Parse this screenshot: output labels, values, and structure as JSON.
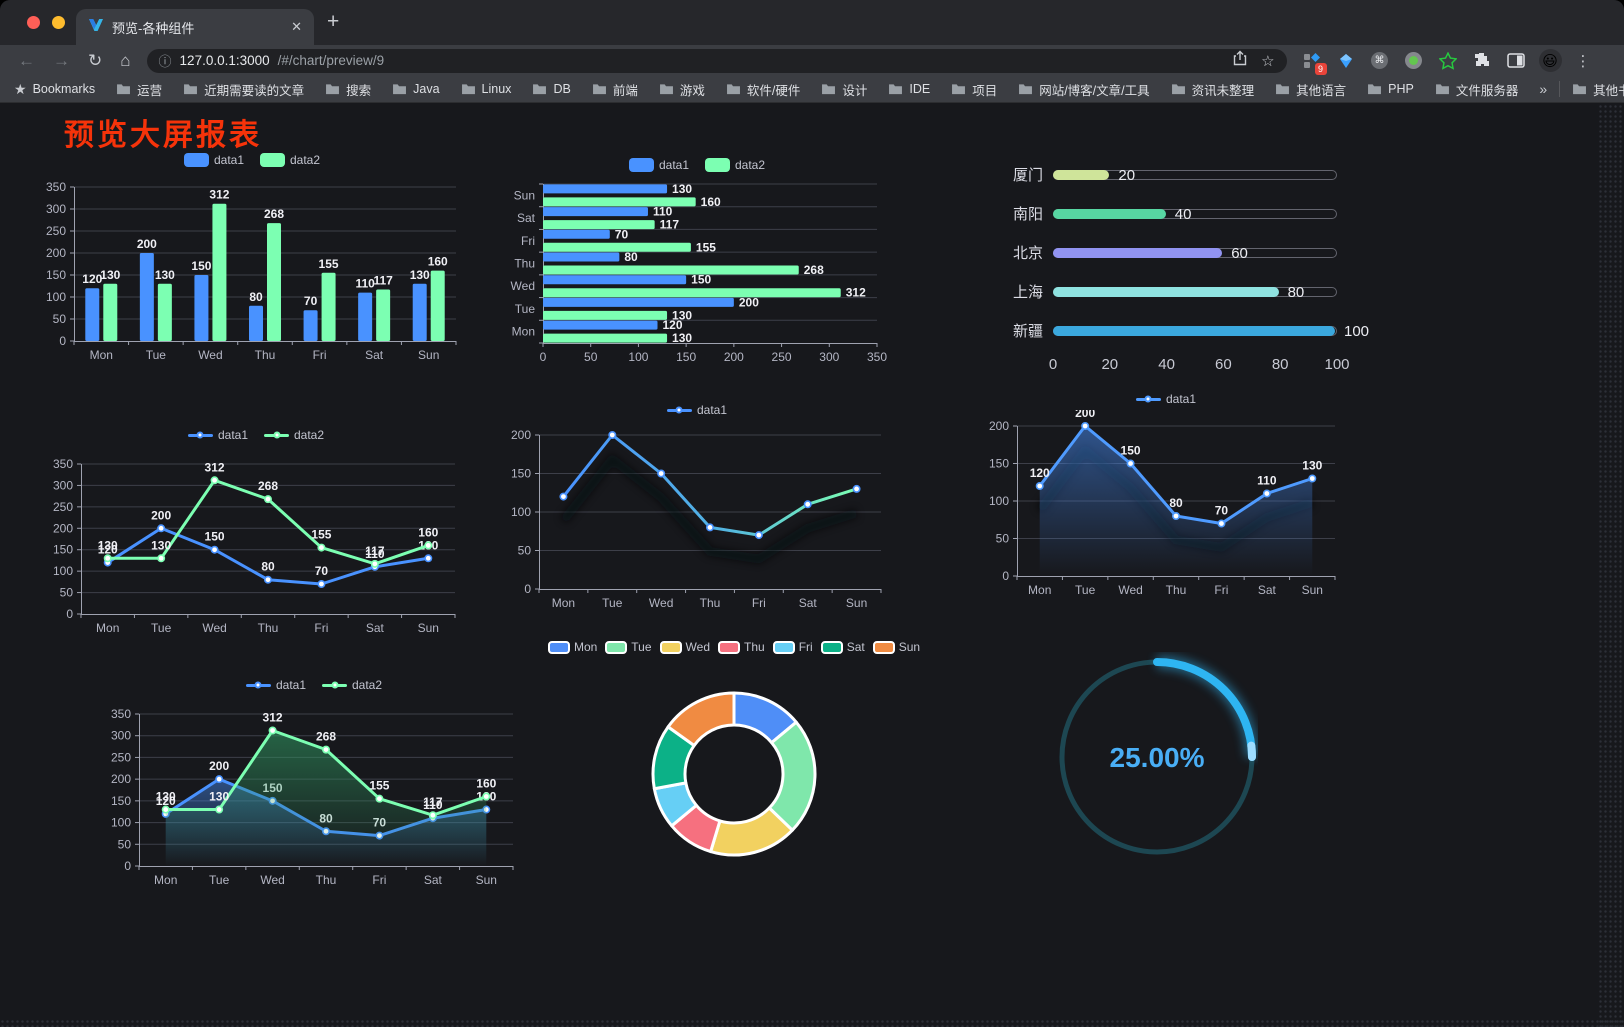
{
  "browser": {
    "tab_title": "预览-各种组件",
    "url": {
      "host": "127.0.0.1:3000",
      "path": "/#/chart/preview/9"
    },
    "bookmarks_bar": {
      "star_label": "Bookmarks",
      "folders": [
        "运营",
        "近期需要读的文章",
        "搜索",
        "Java",
        "Linux",
        "DB",
        "前端",
        "游戏",
        "软件/硬件",
        "设计",
        "IDE",
        "项目",
        "网站/博客/文章/工具",
        "资讯未整理",
        "其他语言",
        "PHP",
        "文件服务器"
      ],
      "overflow": "»",
      "other": "其他书签"
    },
    "extension_badge": "9",
    "profile_emoji": "😃"
  },
  "page": {
    "title": "预览大屏报表",
    "title_color": "#f6330a",
    "background": "#17181c"
  },
  "chart_data": [
    {
      "id": "bar-grouped",
      "type": "bar",
      "legend_position": "top",
      "categories": [
        "Mon",
        "Tue",
        "Wed",
        "Thu",
        "Fri",
        "Sat",
        "Sun"
      ],
      "series": [
        {
          "name": "data1",
          "color": "#4992ff",
          "values": [
            120,
            200,
            150,
            80,
            70,
            110,
            130
          ]
        },
        {
          "name": "data2",
          "color": "#7cffb2",
          "values": [
            130,
            130,
            312,
            268,
            155,
            117,
            160
          ]
        }
      ],
      "ylim": [
        0,
        350
      ],
      "yStep": 50
    },
    {
      "id": "bar-horizontal",
      "type": "bar",
      "orientation": "horizontal",
      "legend_position": "top",
      "categories": [
        "Mon",
        "Tue",
        "Wed",
        "Thu",
        "Fri",
        "Sat",
        "Sun"
      ],
      "series": [
        {
          "name": "data1",
          "color": "#4992ff",
          "values": [
            120,
            200,
            150,
            80,
            70,
            110,
            130
          ]
        },
        {
          "name": "data2",
          "color": "#7cffb2",
          "values": [
            130,
            130,
            312,
            268,
            155,
            117,
            160
          ]
        }
      ],
      "xlim": [
        0,
        350
      ],
      "xStep": 50
    },
    {
      "id": "progress",
      "type": "bar",
      "orientation": "progress",
      "categories": [
        "厦门",
        "南阳",
        "北京",
        "上海",
        "新疆"
      ],
      "values": [
        20,
        40,
        60,
        80,
        100
      ],
      "colors": [
        "#cfe49a",
        "#57d6a2",
        "#9193f1",
        "#8fe2e0",
        "#3ba8de"
      ],
      "xlim": [
        0,
        100
      ],
      "xticks": [
        0,
        20,
        40,
        60,
        80,
        100
      ]
    },
    {
      "id": "line-dual",
      "type": "line",
      "labels": true,
      "categories": [
        "Mon",
        "Tue",
        "Wed",
        "Thu",
        "Fri",
        "Sat",
        "Sun"
      ],
      "series": [
        {
          "name": "data1",
          "color": "#4992ff",
          "values": [
            120,
            200,
            150,
            80,
            70,
            110,
            130
          ]
        },
        {
          "name": "data2",
          "color": "#7cffb2",
          "values": [
            130,
            130,
            312,
            268,
            155,
            117,
            160
          ]
        }
      ],
      "ylim": [
        0,
        350
      ],
      "yStep": 50
    },
    {
      "id": "line-gradient",
      "type": "line",
      "labels": false,
      "categories": [
        "Mon",
        "Tue",
        "Wed",
        "Thu",
        "Fri",
        "Sat",
        "Sun"
      ],
      "series": [
        {
          "name": "data1",
          "color": "#4992ff",
          "markerStroke": "#4992ff",
          "shadow": true,
          "gradient": [
            [
              "0%",
              "#4992ff"
            ],
            [
              "55%",
              "#53b5e0"
            ],
            [
              "100%",
              "#7cffb2"
            ]
          ],
          "values": [
            120,
            200,
            150,
            80,
            70,
            110,
            130
          ]
        }
      ],
      "ylim": [
        0,
        200
      ],
      "yStep": 50
    },
    {
      "id": "area-single",
      "type": "area",
      "labels": true,
      "categories": [
        "Mon",
        "Tue",
        "Wed",
        "Thu",
        "Fri",
        "Sat",
        "Sun"
      ],
      "series": [
        {
          "name": "data1",
          "color": "#4f9bff",
          "area": "#4992ff",
          "areaOpacity": 0.5,
          "shadow": true,
          "values": [
            120,
            200,
            150,
            80,
            70,
            110,
            130
          ]
        }
      ],
      "ylim": [
        0,
        200
      ],
      "yStep": 50
    },
    {
      "id": "area-dual",
      "type": "area",
      "labels": true,
      "categories": [
        "Mon",
        "Tue",
        "Wed",
        "Thu",
        "Fri",
        "Sat",
        "Sun"
      ],
      "series": [
        {
          "name": "data1",
          "color": "#4992ff",
          "area": "#4992ff",
          "areaOpacity": 0.45,
          "values": [
            120,
            200,
            150,
            80,
            70,
            110,
            130
          ]
        },
        {
          "name": "data2",
          "color": "#7cffb2",
          "area": "#2f9560",
          "areaOpacity": 0.6,
          "values": [
            130,
            130,
            312,
            268,
            155,
            117,
            160
          ]
        }
      ],
      "ylim": [
        0,
        350
      ],
      "yStep": 50
    },
    {
      "id": "donut",
      "type": "pie",
      "categories": [
        "Mon",
        "Tue",
        "Wed",
        "Thu",
        "Fri",
        "Sat",
        "Sun"
      ],
      "values": [
        120,
        200,
        150,
        80,
        70,
        110,
        130
      ],
      "colors": [
        "#4f8ef7",
        "#7fe7ab",
        "#f2d160",
        "#f6707f",
        "#66cff5",
        "#0cb187",
        "#f08b42"
      ]
    },
    {
      "id": "gauge",
      "type": "gauge",
      "value": 25,
      "label": "25.00%",
      "color": "#2eb5f2",
      "track": "#1d4752",
      "text_color": "#49aef5"
    }
  ]
}
